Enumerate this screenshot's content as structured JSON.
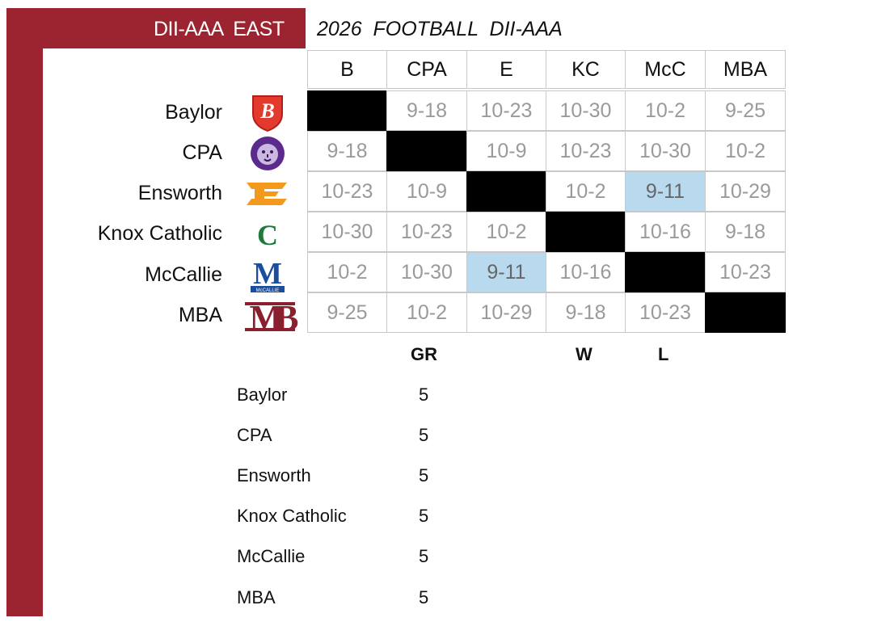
{
  "header": {
    "conference": "DII-AAA  EAST",
    "season_title": "2026  FOOTBALL  DII-AAA"
  },
  "colors": {
    "brand_red": "#9b2430",
    "highlight": "#b9d9ef",
    "blocked": "#000000"
  },
  "grid": {
    "columns": [
      "B",
      "CPA",
      "E",
      "KC",
      "McC",
      "MBA"
    ],
    "rows": [
      {
        "team": "Baylor",
        "logo": "baylor-shield-icon",
        "cells": [
          "",
          "9-18",
          "10-23",
          "10-30",
          "10-2",
          "9-25"
        ]
      },
      {
        "team": "CPA",
        "logo": "cpa-lion-icon",
        "cells": [
          "9-18",
          "",
          "10-9",
          "10-23",
          "10-30",
          "10-2"
        ]
      },
      {
        "team": "Ensworth",
        "logo": "ensworth-e-icon",
        "cells": [
          "10-23",
          "10-9",
          "",
          "10-2",
          "9-11",
          "10-29"
        ]
      },
      {
        "team": "Knox Catholic",
        "logo": "knox-catholic-c-icon",
        "cells": [
          "10-30",
          "10-23",
          "10-2",
          "",
          "10-16",
          "9-18"
        ]
      },
      {
        "team": "McCallie",
        "logo": "mccallie-m-icon",
        "cells": [
          "10-2",
          "10-30",
          "9-11",
          "10-16",
          "",
          "10-23"
        ]
      },
      {
        "team": "MBA",
        "logo": "mba-monogram-icon",
        "cells": [
          "9-25",
          "10-2",
          "10-29",
          "9-18",
          "10-23",
          ""
        ]
      }
    ],
    "highlighted": [
      [
        2,
        4
      ],
      [
        4,
        2
      ]
    ]
  },
  "standings": {
    "headers": {
      "gr": "GR",
      "w": "W",
      "l": "L"
    },
    "teams": [
      {
        "name": "Baylor",
        "gr": "5"
      },
      {
        "name": "CPA",
        "gr": "5"
      },
      {
        "name": "Ensworth",
        "gr": "5"
      },
      {
        "name": "Knox Catholic",
        "gr": "5"
      },
      {
        "name": "McCallie",
        "gr": "5"
      },
      {
        "name": "MBA",
        "gr": "5"
      }
    ]
  }
}
